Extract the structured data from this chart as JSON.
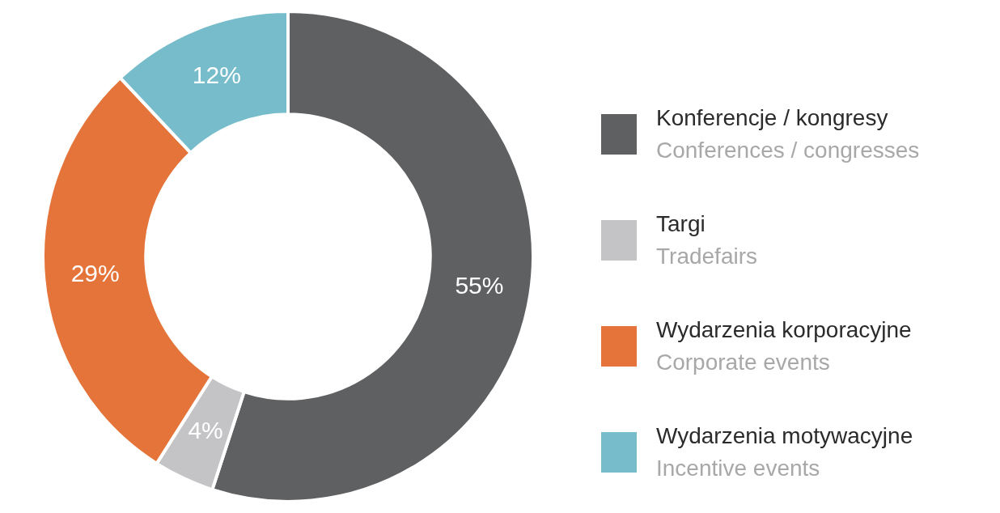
{
  "chart_data": {
    "type": "donut",
    "categories": [
      "Konferencje / kongresy\nConferences / congresses",
      "Targi\nTradefairs",
      "Wydarzenia korporacyjne\nCorporate events",
      "Wydarzenia motywacyjne\nIncentive events"
    ],
    "values": [
      55,
      4,
      29,
      12
    ],
    "colors": [
      "#5f6062",
      "#c4c4c6",
      "#e5743a",
      "#76bccb"
    ],
    "value_labels": [
      "55%",
      "4%",
      "29%",
      "12%"
    ],
    "legend": "right"
  }
}
